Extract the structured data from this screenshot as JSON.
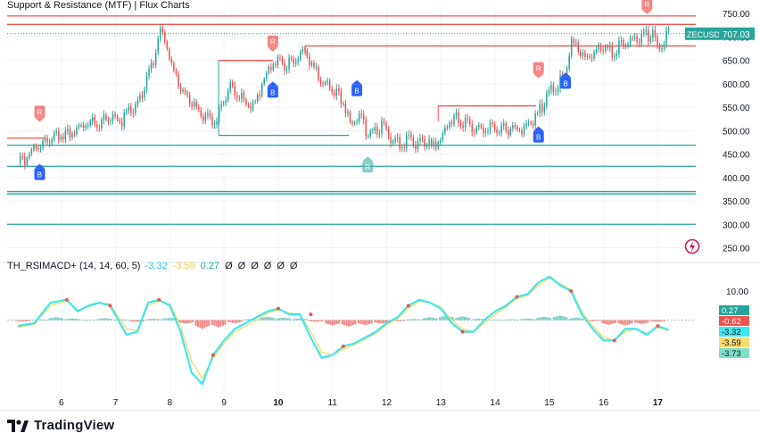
{
  "header": {
    "title": "Support & Resistance (MTF) | Flux Charts",
    "indicator_label": "TH_RSIMACD+ (14, 14, 60, 5)",
    "indicator_values": [
      "-3.32",
      "-3.59",
      "0.27",
      "Ø",
      "Ø",
      "Ø",
      "Ø",
      "Ø",
      "Ø"
    ],
    "indicator_value_colors": [
      "#26c6da",
      "#f7c948",
      "#26a69a",
      "#131722",
      "#131722",
      "#131722",
      "#131722",
      "#131722",
      "#131722"
    ]
  },
  "footer": {
    "brand": "TradingView",
    "brand_icon": "tradingview-logo-icon"
  },
  "colors": {
    "up": "#26a69a",
    "down": "#ef5350",
    "resistance": "#ef5350",
    "support": "#26a69a",
    "rsi_fast": "#3ee6f0",
    "rsi_slow": "#f7dc6f",
    "price_tag": "#26a69a",
    "hist_up": "#7ecfc5",
    "hist_down": "#f28b87",
    "grid": "#f0f3fa",
    "flash": "#c2185b"
  },
  "chart_data": [
    {
      "type": "candlestick",
      "symbol": "ZECUSD",
      "last_price": 707.03,
      "ylim": [
        230,
        760
      ],
      "yticks": [
        250,
        300,
        350,
        400,
        450,
        500,
        550,
        600,
        650,
        700,
        750
      ],
      "ytick_labels": [
        "250.00",
        "300.00",
        "350.00",
        "400.00",
        "450.00",
        "500.00",
        "550.00",
        "600.00",
        "650.00",
        "700.00",
        "750.00"
      ],
      "x_labels": [
        "6",
        "7",
        "8",
        "9",
        "10",
        "11",
        "12",
        "13",
        "14",
        "15",
        "16",
        "17"
      ],
      "bold_x_labels": [
        "10",
        "17"
      ],
      "price_path": [
        [
          5.2,
          432
        ],
        [
          5.35,
          440
        ],
        [
          5.5,
          465
        ],
        [
          5.7,
          478
        ],
        [
          5.9,
          492
        ],
        [
          6.1,
          490
        ],
        [
          6.3,
          505
        ],
        [
          6.5,
          520
        ],
        [
          6.7,
          515
        ],
        [
          6.9,
          530
        ],
        [
          7.1,
          520
        ],
        [
          7.25,
          545
        ],
        [
          7.4,
          555
        ],
        [
          7.55,
          600
        ],
        [
          7.7,
          645
        ],
        [
          7.8,
          715
        ],
        [
          7.9,
          700
        ],
        [
          8.0,
          650
        ],
        [
          8.2,
          590
        ],
        [
          8.4,
          560
        ],
        [
          8.6,
          530
        ],
        [
          8.8,
          520
        ],
        [
          8.95,
          545
        ],
        [
          9.1,
          600
        ],
        [
          9.25,
          580
        ],
        [
          9.4,
          555
        ],
        [
          9.55,
          555
        ],
        [
          9.7,
          600
        ],
        [
          9.85,
          640
        ],
        [
          10.0,
          650
        ],
        [
          10.15,
          640
        ],
        [
          10.3,
          655
        ],
        [
          10.45,
          670
        ],
        [
          10.6,
          650
        ],
        [
          10.75,
          610
        ],
        [
          10.9,
          600
        ],
        [
          11.05,
          580
        ],
        [
          11.2,
          560
        ],
        [
          11.35,
          510
        ],
        [
          11.5,
          530
        ],
        [
          11.65,
          490
        ],
        [
          11.8,
          500
        ],
        [
          11.95,
          510
        ],
        [
          12.1,
          480
        ],
        [
          12.25,
          470
        ],
        [
          12.4,
          480
        ],
        [
          12.55,
          470
        ],
        [
          12.7,
          475
        ],
        [
          12.85,
          465
        ],
        [
          13.0,
          485
        ],
        [
          13.15,
          520
        ],
        [
          13.3,
          530
        ],
        [
          13.5,
          510
        ],
        [
          13.7,
          505
        ],
        [
          13.9,
          510
        ],
        [
          14.1,
          500
        ],
        [
          14.3,
          505
        ],
        [
          14.5,
          500
        ],
        [
          14.7,
          520
        ],
        [
          14.85,
          550
        ],
        [
          15.0,
          580
        ],
        [
          15.15,
          600
        ],
        [
          15.3,
          620
        ],
        [
          15.4,
          690
        ],
        [
          15.5,
          680
        ],
        [
          15.65,
          650
        ],
        [
          15.8,
          665
        ],
        [
          16.0,
          680
        ],
        [
          16.15,
          665
        ],
        [
          16.3,
          680
        ],
        [
          16.5,
          690
        ],
        [
          16.7,
          700
        ],
        [
          16.9,
          705
        ],
        [
          17.0,
          670
        ],
        [
          17.1,
          690
        ],
        [
          17.2,
          707.03
        ]
      ],
      "resistance_levels": [
        {
          "price": 745,
          "x_start": 5,
          "x_end": 17.7
        },
        {
          "price": 727,
          "x_start": 5,
          "x_end": 17.7
        },
        {
          "price": 681,
          "x_start": 10.5,
          "x_end": 17.7
        },
        {
          "price": 650,
          "x_start": 8.9,
          "x_end": 9.9
        },
        {
          "price": 553,
          "x_start": 12.95,
          "x_end": 14.75
        },
        {
          "price": 484,
          "x_start": 5,
          "x_end": 5.7
        }
      ],
      "support_levels": [
        {
          "price": 490,
          "x_start": 8.9,
          "x_end": 11.3
        },
        {
          "price": 469,
          "x_start": 5,
          "x_end": 17.7
        },
        {
          "price": 424,
          "x_start": 5,
          "x_end": 17.7
        },
        {
          "price": 370,
          "x_start": 5,
          "x_end": 17.7
        },
        {
          "price": 365,
          "x_start": 5,
          "x_end": 17.7
        },
        {
          "price": 300,
          "x_start": 5,
          "x_end": 17.7
        }
      ],
      "signals": [
        {
          "label": "R",
          "x": 5.6,
          "price": 540,
          "kind": "sell"
        },
        {
          "label": "B",
          "x": 5.6,
          "price": 408,
          "kind": "buy"
        },
        {
          "label": "R",
          "x": 9.9,
          "price": 690,
          "kind": "sell"
        },
        {
          "label": "B",
          "x": 9.9,
          "price": 584,
          "kind": "buy"
        },
        {
          "label": "B",
          "x": 11.45,
          "price": 587,
          "kind": "buy"
        },
        {
          "label": "R",
          "x": 11.65,
          "price": 424,
          "kind": "neutral"
        },
        {
          "label": "B",
          "x": 14.8,
          "price": 488,
          "kind": "buy"
        },
        {
          "label": "R",
          "x": 14.8,
          "price": 633,
          "kind": "sell"
        },
        {
          "label": "B",
          "x": 15.3,
          "price": 603,
          "kind": "buy"
        },
        {
          "label": "R",
          "x": 16.8,
          "price": 770,
          "kind": "sell"
        }
      ]
    },
    {
      "type": "line",
      "title": "TH_RSIMACD+ (14, 14, 60, 5)",
      "ytick_labels": [
        "10.00"
      ],
      "ylim": [
        -25,
        18
      ],
      "right_labels": [
        {
          "value": 0.27,
          "text": "0.27",
          "color": "#26a69a"
        },
        {
          "value": -0.62,
          "text": "-0.62",
          "color": "#ef5350"
        },
        {
          "value": -3.32,
          "text": "-3.32",
          "color": "#3ee6f0"
        },
        {
          "value": -3.59,
          "text": "-3.59",
          "color": "#f7dc6f"
        },
        {
          "value": -3.73,
          "text": "-3.73",
          "color": "#7fe0c8"
        }
      ],
      "series": [
        {
          "name": "-3.32",
          "x": [
            5.2,
            5.5,
            5.8,
            6.1,
            6.3,
            6.5,
            6.7,
            6.9,
            7.2,
            7.4,
            7.6,
            7.8,
            8.0,
            8.2,
            8.4,
            8.6,
            8.8,
            9.0,
            9.2,
            9.4,
            9.6,
            9.8,
            10.0,
            10.2,
            10.4,
            10.6,
            10.8,
            11.0,
            11.2,
            11.4,
            11.6,
            11.8,
            12.0,
            12.2,
            12.4,
            12.6,
            12.8,
            13.0,
            13.2,
            13.4,
            13.6,
            13.8,
            14.0,
            14.2,
            14.4,
            14.6,
            14.8,
            15.0,
            15.2,
            15.4,
            15.6,
            15.8,
            16.0,
            16.2,
            16.4,
            16.6,
            16.8,
            17.0,
            17.2
          ],
          "values": [
            -2,
            -1,
            6,
            7,
            3,
            5,
            6,
            5,
            -5,
            -4,
            6,
            7,
            5,
            -4,
            -18,
            -22,
            -12,
            -7,
            -3,
            -1,
            1,
            3,
            4,
            2,
            2,
            -6,
            -13,
            -12,
            -9,
            -8,
            -6,
            -4,
            -1,
            1,
            5,
            7,
            6,
            4,
            -1,
            -4,
            -4,
            0,
            3,
            5,
            8,
            9,
            13,
            15,
            12,
            10,
            2,
            -3,
            -7,
            -7,
            -3,
            -3,
            -5,
            -2,
            -3.32
          ],
          "color": "#3ee6f0"
        },
        {
          "name": "-3.59",
          "x": [
            5.2,
            5.5,
            5.8,
            6.1,
            6.3,
            6.5,
            6.7,
            6.9,
            7.2,
            7.4,
            7.6,
            7.8,
            8.0,
            8.2,
            8.4,
            8.6,
            8.8,
            9.0,
            9.2,
            9.4,
            9.6,
            9.8,
            10.0,
            10.2,
            10.4,
            10.6,
            10.8,
            11.0,
            11.2,
            11.4,
            11.6,
            11.8,
            12.0,
            12.2,
            12.4,
            12.6,
            12.8,
            13.0,
            13.2,
            13.4,
            13.6,
            13.8,
            14.0,
            14.2,
            14.4,
            14.6,
            14.8,
            15.0,
            15.2,
            15.4,
            15.6,
            15.8,
            16.0,
            16.2,
            16.4,
            16.6,
            16.8,
            17.0,
            17.2
          ],
          "values": [
            -2.5,
            -1.5,
            5,
            6.5,
            3.5,
            4.5,
            6,
            5.5,
            -3,
            -3.5,
            5,
            6.5,
            5.5,
            -2,
            -14,
            -20,
            -13,
            -8,
            -4,
            -2,
            0,
            2.5,
            3.5,
            2.5,
            2,
            -4,
            -11,
            -12,
            -10,
            -8.5,
            -6.5,
            -4.5,
            -1.5,
            0.5,
            4,
            6.5,
            6,
            4.5,
            0,
            -3,
            -4,
            -1,
            2,
            4.5,
            7.5,
            8.5,
            12,
            14.5,
            12.5,
            10.5,
            3,
            -2,
            -6,
            -7,
            -4,
            -3,
            -4.5,
            -2.5,
            -3.59
          ],
          "color": "#f7dc6f"
        }
      ],
      "histogram": {
        "color_up": "#7ecfc5",
        "color_down": "#f28b87",
        "x": [
          5.3,
          5.6,
          5.9,
          6.2,
          6.5,
          6.8,
          7.1,
          7.4,
          7.7,
          8.0,
          8.3,
          8.6,
          8.9,
          9.2,
          9.5,
          9.8,
          10.1,
          10.4,
          10.7,
          11.0,
          11.3,
          11.6,
          11.9,
          12.2,
          12.5,
          12.8,
          13.1,
          13.4,
          13.7,
          14.0,
          14.3,
          14.6,
          14.9,
          15.2,
          15.5,
          15.8,
          16.1,
          16.4,
          16.7,
          17.0
        ],
        "values": [
          -0.5,
          0.3,
          1.0,
          0.6,
          0.2,
          0.7,
          0.3,
          -0.6,
          0.5,
          0.8,
          -1.2,
          -3.0,
          -2.5,
          -1.0,
          0.4,
          1.2,
          0.9,
          0.6,
          -0.6,
          -1.8,
          -2.2,
          -1.7,
          -1.2,
          -0.4,
          0.4,
          1.0,
          1.6,
          1.3,
          0.5,
          0.2,
          0.3,
          0.6,
          1.2,
          1.6,
          0.9,
          -0.4,
          -1.6,
          -1.8,
          -1.3,
          -0.6
        ]
      }
    }
  ]
}
